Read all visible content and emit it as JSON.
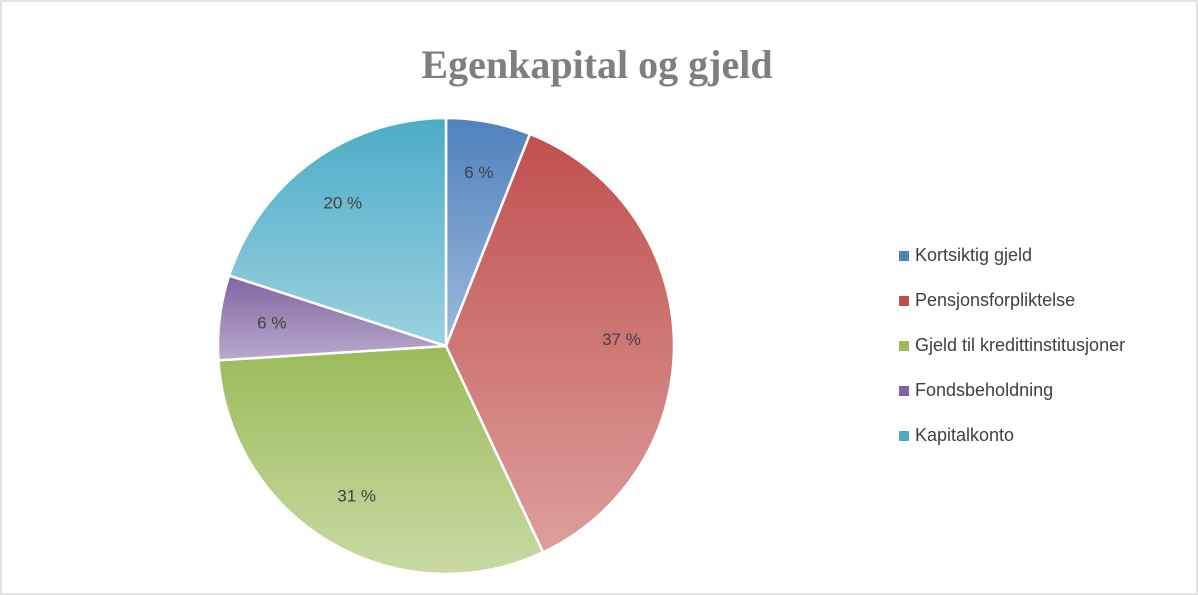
{
  "chart_data": {
    "type": "pie",
    "title": "Egenkapital og gjeld",
    "categories": [
      "Kortsiktig gjeld",
      "Pensjonsforpliktelse",
      "Gjeld til kredittinstitusjoner",
      "Fondsbeholdning",
      "Kapitalkonto"
    ],
    "values": [
      6,
      37,
      31,
      6,
      20
    ],
    "value_labels": [
      "6 %",
      "37 %",
      "31 %",
      "6 %",
      "20 %"
    ],
    "colors": [
      "#4f81bd",
      "#c0504d",
      "#9bbb59",
      "#8064a2",
      "#4bacc6"
    ],
    "legend": "right"
  }
}
